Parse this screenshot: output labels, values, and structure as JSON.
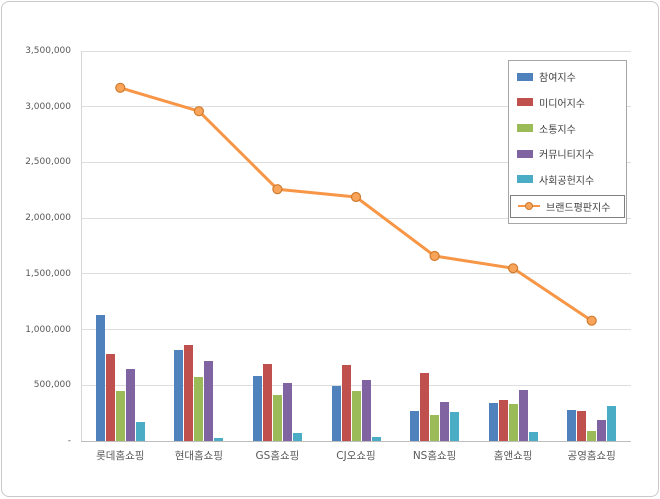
{
  "chart_data": {
    "type": "bar",
    "title": "",
    "xlabel": "",
    "ylabel": "",
    "categories": [
      "롯데홈쇼핑",
      "현대홈쇼핑",
      "GS홈쇼핑",
      "CJ오쇼핑",
      "NS홈쇼핑",
      "홈앤쇼핑",
      "공영홈쇼핑"
    ],
    "series": [
      {
        "name": "참여지수",
        "type": "bar",
        "color": "#4F81BD",
        "values": [
          1130000,
          820000,
          580000,
          490000,
          270000,
          340000,
          280000
        ]
      },
      {
        "name": "미디어지수",
        "type": "bar",
        "color": "#C0504D",
        "values": [
          780000,
          860000,
          690000,
          680000,
          610000,
          370000,
          270000
        ]
      },
      {
        "name": "소통지수",
        "type": "bar",
        "color": "#9BBB59",
        "values": [
          450000,
          570000,
          410000,
          450000,
          230000,
          330000,
          90000
        ]
      },
      {
        "name": "커뮤니티지수",
        "type": "bar",
        "color": "#8064A2",
        "values": [
          650000,
          720000,
          520000,
          550000,
          350000,
          460000,
          190000
        ]
      },
      {
        "name": "사회공헌지수",
        "type": "bar",
        "color": "#4BACC6",
        "values": [
          170000,
          30000,
          70000,
          40000,
          260000,
          80000,
          310000
        ]
      },
      {
        "name": "브랜드평판지수",
        "type": "line",
        "color": "#F79646",
        "marker_fill": "#F9A45B",
        "marker_stroke": "#D07A2C",
        "values": [
          3170000,
          2960000,
          2260000,
          2190000,
          1660000,
          1550000,
          1080000
        ]
      }
    ],
    "ylim": [
      0,
      3500000
    ],
    "ytick_interval": 500000,
    "ytick_labels": [
      "-",
      "500,000",
      "1,000,000",
      "1,500,000",
      "2,000,000",
      "2,500,000",
      "3,000,000",
      "3,500,000"
    ],
    "grid": true,
    "legend_position": "top-right"
  }
}
